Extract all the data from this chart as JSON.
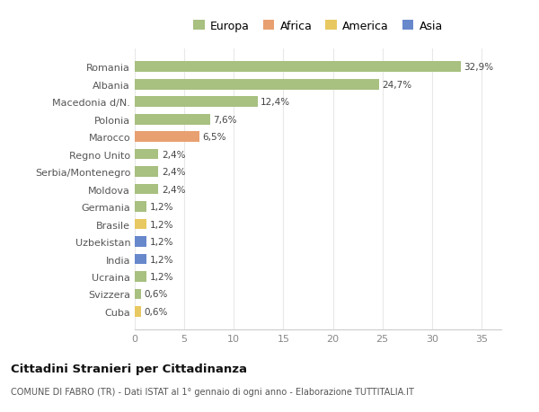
{
  "categories": [
    "Romania",
    "Albania",
    "Macedonia d/N.",
    "Polonia",
    "Marocco",
    "Regno Unito",
    "Serbia/Montenegro",
    "Moldova",
    "Germania",
    "Brasile",
    "Uzbekistan",
    "India",
    "Ucraina",
    "Svizzera",
    "Cuba"
  ],
  "values": [
    32.9,
    24.7,
    12.4,
    7.6,
    6.5,
    2.4,
    2.4,
    2.4,
    1.2,
    1.2,
    1.2,
    1.2,
    1.2,
    0.6,
    0.6
  ],
  "labels": [
    "32,9%",
    "24,7%",
    "12,4%",
    "7,6%",
    "6,5%",
    "2,4%",
    "2,4%",
    "2,4%",
    "1,2%",
    "1,2%",
    "1,2%",
    "1,2%",
    "1,2%",
    "0,6%",
    "0,6%"
  ],
  "colors": [
    "#a8c080",
    "#a8c080",
    "#a8c080",
    "#a8c080",
    "#e8a070",
    "#a8c080",
    "#a8c080",
    "#a8c080",
    "#a8c080",
    "#e8c860",
    "#6888cc",
    "#6888cc",
    "#a8c080",
    "#a8c080",
    "#e8c860"
  ],
  "legend_labels": [
    "Europa",
    "Africa",
    "America",
    "Asia"
  ],
  "legend_colors": [
    "#a8c080",
    "#e8a070",
    "#e8c860",
    "#6888cc"
  ],
  "title": "Cittadini Stranieri per Cittadinanza",
  "subtitle": "COMUNE DI FABRO (TR) - Dati ISTAT al 1° gennaio di ogni anno - Elaborazione TUTTITALIA.IT",
  "xlim": [
    0,
    37
  ],
  "xticks": [
    0,
    5,
    10,
    15,
    20,
    25,
    30,
    35
  ],
  "bg_color": "#ffffff",
  "plot_bg_color": "#ffffff",
  "grid_color": "#e8e8e8"
}
